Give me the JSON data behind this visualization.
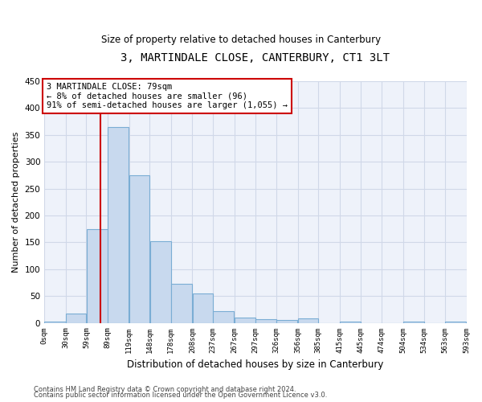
{
  "title": "3, MARTINDALE CLOSE, CANTERBURY, CT1 3LT",
  "subtitle": "Size of property relative to detached houses in Canterbury",
  "xlabel": "Distribution of detached houses by size in Canterbury",
  "ylabel": "Number of detached properties",
  "bar_values": [
    3,
    17,
    175,
    365,
    275,
    152,
    72,
    54,
    22,
    10,
    7,
    5,
    8,
    0,
    3,
    0,
    0,
    2,
    0,
    2
  ],
  "bin_edges": [
    0,
    30,
    59,
    89,
    119,
    148,
    178,
    208,
    237,
    267,
    297,
    326,
    356,
    385,
    415,
    445,
    474,
    504,
    534,
    563,
    593
  ],
  "bar_color": "#c8d9ee",
  "bar_edge_color": "#7aadd4",
  "grid_color": "#d0d8e8",
  "background_color": "#eef2fa",
  "property_size": 79,
  "property_label": "3 MARTINDALE CLOSE: 79sqm",
  "annotation_line1": "← 8% of detached houses are smaller (96)",
  "annotation_line2": "91% of semi-detached houses are larger (1,055) →",
  "red_line_color": "#cc0000",
  "annotation_box_color": "#ffffff",
  "annotation_box_edge_color": "#cc0000",
  "ylim": [
    0,
    450
  ],
  "yticks": [
    0,
    50,
    100,
    150,
    200,
    250,
    300,
    350,
    400,
    450
  ],
  "tick_labels": [
    "0sqm",
    "30sqm",
    "59sqm",
    "89sqm",
    "119sqm",
    "148sqm",
    "178sqm",
    "208sqm",
    "237sqm",
    "267sqm",
    "297sqm",
    "326sqm",
    "356sqm",
    "385sqm",
    "415sqm",
    "445sqm",
    "474sqm",
    "504sqm",
    "534sqm",
    "563sqm",
    "593sqm"
  ],
  "footer1": "Contains HM Land Registry data © Crown copyright and database right 2024.",
  "footer2": "Contains public sector information licensed under the Open Government Licence v3.0."
}
